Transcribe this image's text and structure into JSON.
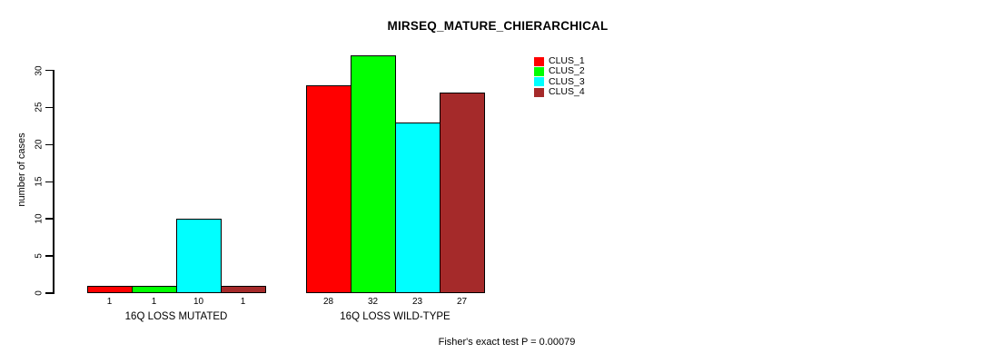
{
  "chart_data": {
    "type": "bar",
    "title": "MIRSEQ_MATURE_CHIERARCHICAL",
    "ylabel": "number of cases",
    "xlabel": "",
    "ylim": [
      0,
      32
    ],
    "yticks": [
      0,
      5,
      10,
      15,
      20,
      25,
      30
    ],
    "grid": false,
    "legend_position": "top-right",
    "categories": [
      "16Q LOSS MUTATED",
      "16Q LOSS WILD-TYPE"
    ],
    "series": [
      {
        "name": "CLUS_1",
        "color": "#FF0000",
        "values": [
          1,
          28
        ]
      },
      {
        "name": "CLUS_2",
        "color": "#00FF00",
        "values": [
          1,
          32
        ]
      },
      {
        "name": "CLUS_3",
        "color": "#00FFFF",
        "values": [
          10,
          23
        ]
      },
      {
        "name": "CLUS_4",
        "color": "#A52A2A",
        "values": [
          1,
          27
        ]
      }
    ],
    "bar_value_labels": [
      [
        "1",
        "1",
        "10",
        "1"
      ],
      [
        "28",
        "32",
        "23",
        "27"
      ]
    ],
    "caption": "Fisher's exact test P = 0.00079",
    "colors": {
      "background": "#FFFFFF",
      "axis": "#000000",
      "text": "#000000"
    }
  }
}
